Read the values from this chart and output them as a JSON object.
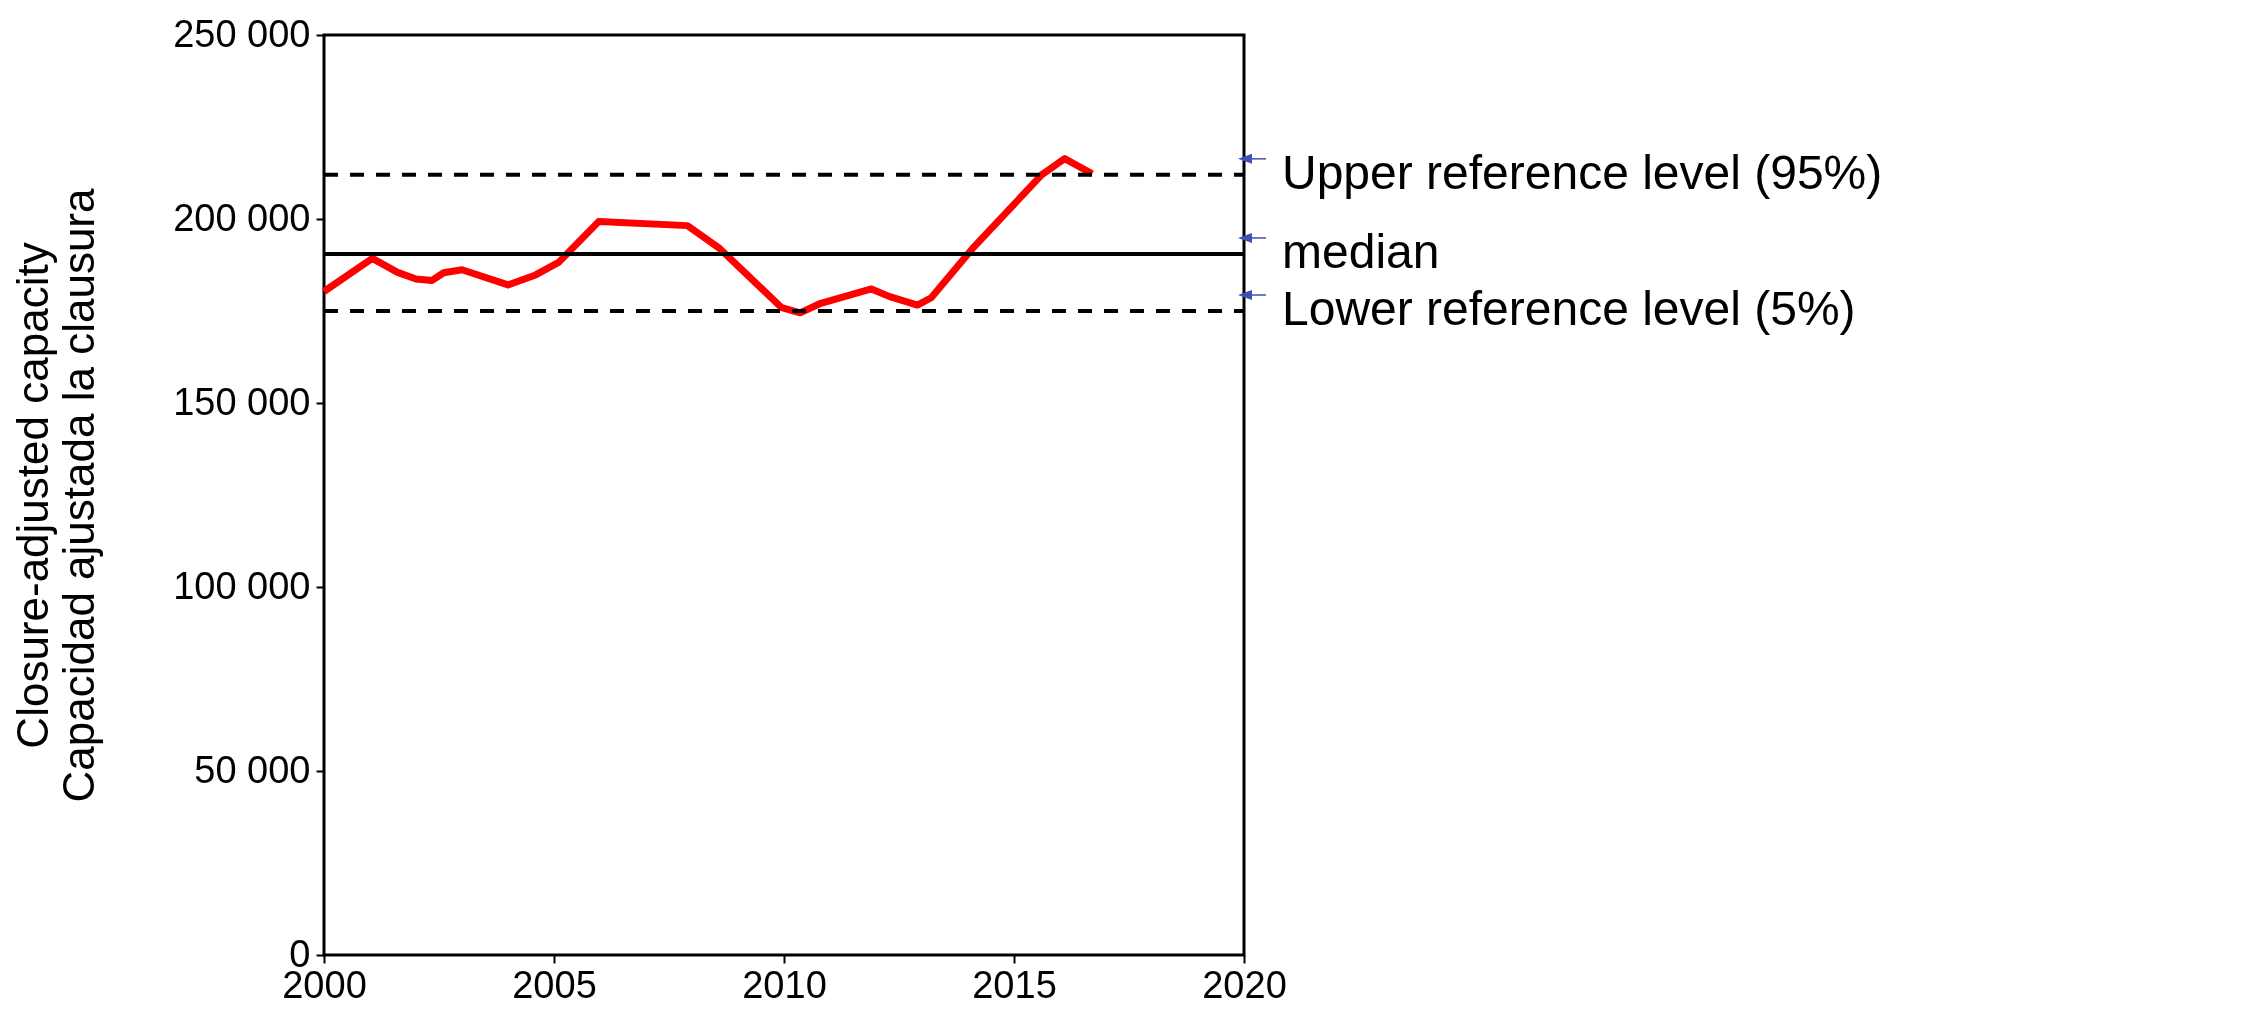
{
  "chart_data": {
    "type": "line",
    "ylabel": "Closure-adjusted capacity\nCapacidad ajustada la clausura",
    "series": [
      {
        "color": "#ff0000",
        "x": [
          2000.0,
          2001.05,
          2001.6,
          2002.0,
          2002.35,
          2002.6,
          2003.0,
          2004.0,
          2004.6,
          2005.1,
          2005.97,
          2007.9,
          2008.6,
          2009.95,
          2010.35,
          2010.8,
          2011.9,
          2012.3,
          2012.9,
          2013.2,
          2014.1,
          2015.6,
          2016.1,
          2016.7
        ],
        "values": [
          180300,
          189300,
          185500,
          183700,
          183300,
          185400,
          186200,
          182100,
          184800,
          188200,
          199300,
          198200,
          192000,
          175900,
          174500,
          177100,
          181000,
          178900,
          176600,
          178600,
          192000,
          212000,
          216400,
          212300
        ]
      }
    ],
    "xlim": [
      2000,
      2020
    ],
    "xticks": [
      2000,
      2005,
      2010,
      2015,
      2020
    ],
    "ylim": [
      0,
      250000
    ],
    "yticks": [
      0,
      {
        "value": 50000,
        "label": "50 000"
      },
      {
        "value": 100000,
        "label": "100 000"
      },
      {
        "value": 150000,
        "label": "150 000"
      },
      {
        "value": 200000,
        "label": "200 000"
      },
      {
        "value": 250000,
        "label": "250 000"
      }
    ],
    "ref_lines": [
      {
        "axis": "y",
        "value": 212000,
        "label": "Upper reference level (95%)",
        "color": "#000000",
        "line_style": "dashed"
      },
      {
        "axis": "y",
        "value": 190500,
        "label": "median",
        "color": "#000000",
        "line_style": "solid"
      },
      {
        "axis": "y",
        "value": 175000,
        "label": "Lower reference level (5%)",
        "color": "#000000",
        "line_style": "dashed"
      }
    ]
  }
}
